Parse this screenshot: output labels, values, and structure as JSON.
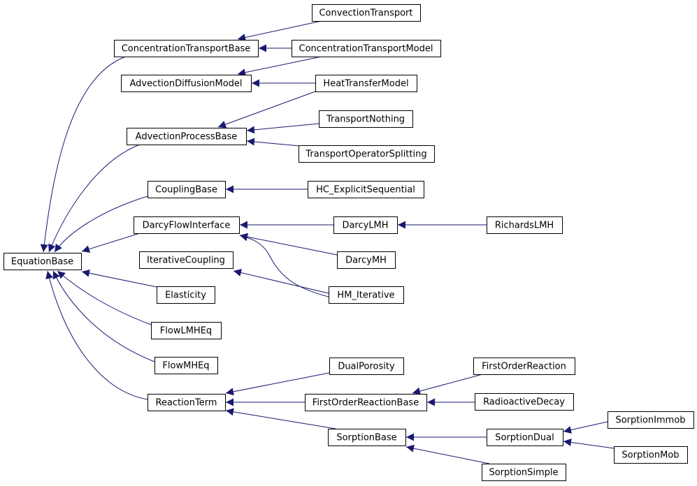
{
  "nodes": [
    {
      "label": "EquationBase"
    },
    {
      "label": "ConcentrationTransportBase"
    },
    {
      "label": "ConvectionTransport"
    },
    {
      "label": "ConcentrationTransportModel"
    },
    {
      "label": "AdvectionDiffusionModel"
    },
    {
      "label": "HeatTransferModel"
    },
    {
      "label": "AdvectionProcessBase"
    },
    {
      "label": "TransportNothing"
    },
    {
      "label": "TransportOperatorSplitting"
    },
    {
      "label": "CouplingBase"
    },
    {
      "label": "HC_ExplicitSequential"
    },
    {
      "label": "DarcyFlowInterface"
    },
    {
      "label": "DarcyLMH"
    },
    {
      "label": "RichardsLMH"
    },
    {
      "label": "DarcyMH"
    },
    {
      "label": "IterativeCoupling"
    },
    {
      "label": "HM_Iterative"
    },
    {
      "label": "Elasticity"
    },
    {
      "label": "FlowLMHEq"
    },
    {
      "label": "FlowMHEq"
    },
    {
      "label": "ReactionTerm"
    },
    {
      "label": "DualPorosity"
    },
    {
      "label": "FirstOrderReactionBase"
    },
    {
      "label": "FirstOrderReaction"
    },
    {
      "label": "RadioactiveDecay"
    },
    {
      "label": "SorptionBase"
    },
    {
      "label": "SorptionDual"
    },
    {
      "label": "SorptionSimple"
    },
    {
      "label": "SorptionImmob"
    },
    {
      "label": "SorptionMob"
    }
  ]
}
